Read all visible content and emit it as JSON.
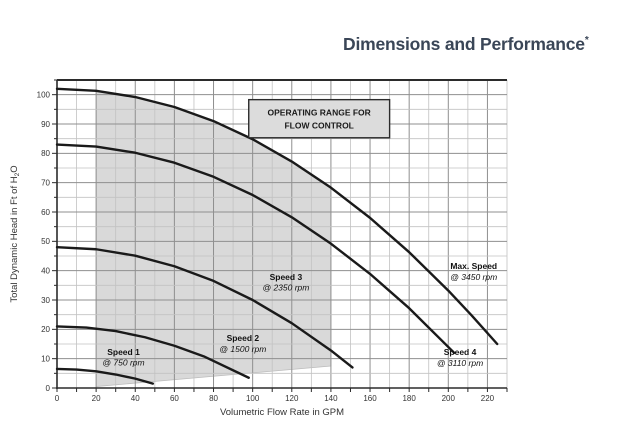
{
  "header": {
    "title": "Dimensions and Performance",
    "superscript": "*",
    "color": "#3a4657"
  },
  "chart_data": {
    "type": "line",
    "title": "Dimensions and Performance*",
    "xlabel": "Volumetric Flow Rate in GPM",
    "ylabel": "Total Dynamic Head in Ft of H2O",
    "ylabel_parts": {
      "pre": "Total Dynamic Head in Ft of H",
      "sub": "2",
      "post": "O"
    },
    "xlim": [
      0,
      230
    ],
    "ylim": [
      0,
      105
    ],
    "x_tick_labels": [
      0,
      20,
      40,
      60,
      80,
      100,
      120,
      140,
      160,
      180,
      200,
      220
    ],
    "y_tick_labels": [
      0,
      10,
      20,
      30,
      40,
      50,
      60,
      70,
      80,
      90,
      100
    ],
    "x_minor_step": 10,
    "x_major_every": 20,
    "y_minor_step": 5,
    "y_major_every": 10,
    "grid": true,
    "legend_position": "inline-curve-labels",
    "series": [
      {
        "name": "Max. Speed",
        "rpm": "@ 3450 rpm",
        "x": [
          0,
          20,
          40,
          60,
          80,
          100,
          120,
          140,
          160,
          180,
          200,
          212,
          225
        ],
        "y": [
          102,
          101.3,
          99.2,
          95.8,
          91.0,
          84.8,
          77.2,
          68.3,
          58.0,
          46.3,
          33.2,
          24.7,
          15.0
        ],
        "label_xy": [
          213,
          40.6
        ],
        "rpm_xy": [
          213,
          36.9
        ]
      },
      {
        "name": "Speed 4",
        "rpm": "@ 3110 rpm",
        "x": [
          0,
          20,
          40,
          60,
          80,
          100,
          120,
          140,
          160,
          180,
          203
        ],
        "y": [
          83,
          82.3,
          80.2,
          76.8,
          72.0,
          65.8,
          58.2,
          49.2,
          38.9,
          27.2,
          12.0
        ],
        "label_xy": [
          206,
          11.2
        ],
        "rpm_xy": [
          206,
          7.5
        ]
      },
      {
        "name": "Speed 3",
        "rpm": "@ 2350 rpm",
        "x": [
          0,
          20,
          40,
          60,
          80,
          100,
          120,
          140,
          151
        ],
        "y": [
          48,
          47.3,
          45.1,
          41.5,
          36.5,
          30.0,
          22.1,
          12.8,
          7.0
        ],
        "label_xy": [
          117,
          36.9
        ],
        "rpm_xy": [
          117,
          33.2
        ]
      },
      {
        "name": "Speed 2",
        "rpm": "@ 1500 rpm",
        "x": [
          0,
          15,
          30,
          45,
          60,
          75,
          98
        ],
        "y": [
          21,
          20.6,
          19.4,
          17.3,
          14.4,
          10.8,
          3.5
        ],
        "label_xy": [
          95,
          16.0
        ],
        "rpm_xy": [
          95,
          12.3
        ]
      },
      {
        "name": "Speed 1",
        "rpm": "@ 750 rpm",
        "x": [
          0,
          10,
          20,
          30,
          40,
          49
        ],
        "y": [
          6.5,
          6.3,
          5.7,
          4.6,
          3.2,
          1.5
        ],
        "label_xy": [
          34,
          11.2
        ],
        "rpm_xy": [
          34,
          7.6
        ]
      }
    ],
    "operating_range": {
      "lines": [
        "OPERATING RANGE FOR",
        "FLOW CONTROL"
      ],
      "region": [
        [
          20,
          0.5
        ],
        [
          20,
          101.3
        ],
        [
          40,
          99.2
        ],
        [
          60,
          95.8
        ],
        [
          80,
          91.0
        ],
        [
          100,
          84.8
        ],
        [
          120,
          77.2
        ],
        [
          140,
          68.3
        ],
        [
          140,
          7.5
        ]
      ],
      "box": {
        "x": 98,
        "y": 98.3,
        "w": 72,
        "h": 13
      }
    },
    "colors": {
      "curve": "#1a1a1a",
      "curve_label": "#111111",
      "grid_minor": "#c2c2c2",
      "grid_major": "#8f8f8f",
      "axis": "#2b2b2b",
      "shading": "#d9d9d9",
      "shading_border": "#bdbdbd",
      "box_fill": "#dcdcdc",
      "box_border": "#2b2b2b",
      "text": "#333333"
    }
  }
}
